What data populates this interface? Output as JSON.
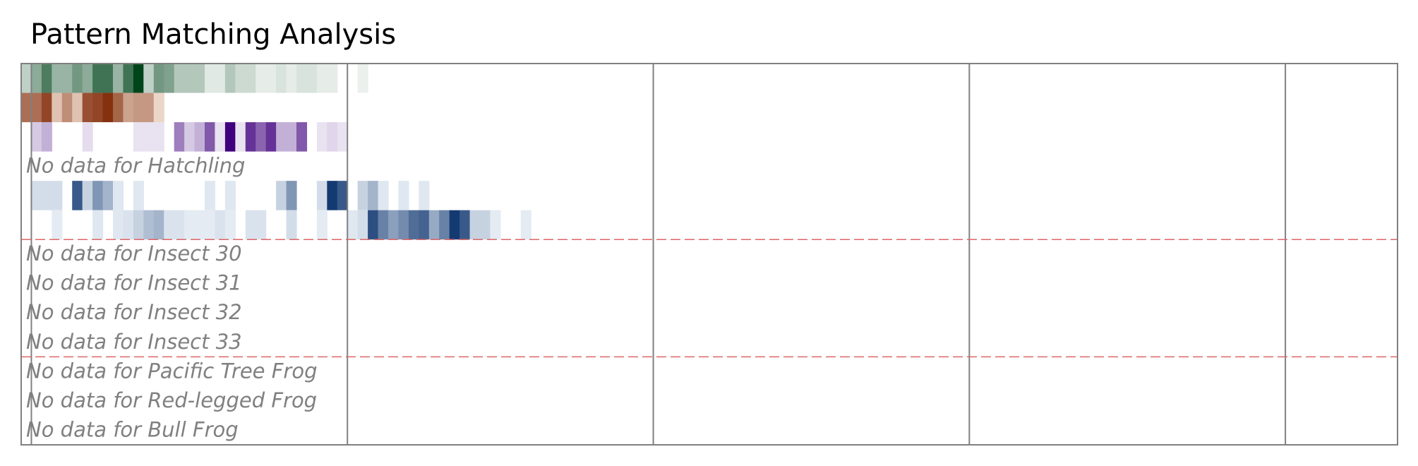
{
  "chart_data": {
    "type": "heatmap",
    "title": "Pattern Matching Analysis",
    "xlabel": "",
    "ylabel": "",
    "grid": true,
    "columns": 135,
    "rows": [
      {
        "name": "",
        "colormap": "greens",
        "values": [
          0.25,
          0.45,
          0.7,
          0.4,
          0.4,
          0.55,
          0.45,
          0.75,
          0.75,
          0.4,
          0.75,
          1,
          0.25,
          0.55,
          0.5,
          0.3,
          0.3,
          0.3,
          0.12,
          0.12,
          0.3,
          0.2,
          0.2,
          0.1,
          0.1,
          0.15,
          0.1,
          0.15,
          0.15,
          0.1,
          0.1,
          0,
          0,
          0.08,
          0,
          0,
          0,
          0,
          0,
          0,
          0,
          0,
          0,
          0,
          0,
          0,
          0,
          0,
          0,
          0,
          0,
          0,
          0,
          0,
          0,
          0,
          0,
          0,
          0,
          0,
          0,
          0,
          0,
          0,
          0,
          0,
          0,
          0,
          0,
          0,
          0,
          0,
          0,
          0,
          0,
          0,
          0,
          0,
          0,
          0,
          0,
          0,
          0,
          0,
          0,
          0,
          0,
          0,
          0,
          0,
          0,
          0,
          0,
          0,
          0,
          0,
          0,
          0,
          0,
          0,
          0,
          0,
          0,
          0,
          0,
          0,
          0,
          0,
          0,
          0,
          0,
          0,
          0,
          0,
          0,
          0,
          0,
          0,
          0,
          0,
          0,
          0,
          0,
          0,
          0,
          0,
          0,
          0,
          0,
          0,
          0,
          0,
          0,
          0,
          0
        ]
      },
      {
        "name": "",
        "colormap": "oranges",
        "values": [
          0.65,
          0.65,
          0.85,
          0.25,
          0.5,
          0.25,
          0.8,
          0.85,
          0.95,
          0.7,
          0.4,
          0.45,
          0.45,
          0.15,
          0,
          0,
          0,
          0,
          0,
          0,
          0,
          0,
          0,
          0,
          0,
          0,
          0,
          0,
          0,
          0,
          0,
          0,
          0,
          0,
          0,
          0,
          0,
          0,
          0,
          0,
          0,
          0,
          0,
          0,
          0,
          0,
          0,
          0,
          0,
          0,
          0,
          0,
          0,
          0,
          0,
          0,
          0,
          0,
          0,
          0,
          0,
          0,
          0,
          0,
          0,
          0,
          0,
          0,
          0,
          0,
          0,
          0,
          0,
          0,
          0,
          0,
          0,
          0,
          0,
          0,
          0,
          0,
          0,
          0,
          0,
          0,
          0,
          0,
          0,
          0,
          0,
          0,
          0,
          0,
          0,
          0,
          0,
          0,
          0,
          0,
          0,
          0,
          0,
          0,
          0,
          0,
          0,
          0,
          0,
          0,
          0,
          0,
          0,
          0,
          0,
          0,
          0,
          0,
          0,
          0,
          0,
          0,
          0,
          0,
          0,
          0,
          0,
          0,
          0,
          0,
          0,
          0,
          0,
          0,
          0
        ]
      },
      {
        "name": "",
        "colormap": "purples",
        "values": [
          0,
          0.2,
          0.3,
          0,
          0,
          0,
          0.12,
          0,
          0,
          0,
          0,
          0.1,
          0.1,
          0.1,
          0,
          0.5,
          0.2,
          0.3,
          0.65,
          0.1,
          1,
          0.1,
          0.8,
          0.6,
          0.8,
          0.3,
          0.3,
          0.65,
          0,
          0.1,
          0.15,
          0.1,
          0,
          0,
          0,
          0,
          0,
          0,
          0,
          0,
          0,
          0,
          0,
          0,
          0,
          0,
          0,
          0,
          0,
          0,
          0,
          0,
          0,
          0,
          0,
          0,
          0,
          0,
          0,
          0,
          0,
          0,
          0,
          0,
          0,
          0,
          0,
          0,
          0,
          0,
          0,
          0,
          0,
          0,
          0,
          0,
          0,
          0,
          0,
          0,
          0,
          0,
          0,
          0,
          0,
          0,
          0,
          0,
          0,
          0,
          0,
          0,
          0,
          0,
          0,
          0,
          0,
          0,
          0,
          0,
          0,
          0,
          0,
          0,
          0,
          0,
          0,
          0,
          0,
          0,
          0,
          0,
          0,
          0,
          0,
          0,
          0,
          0,
          0,
          0,
          0,
          0,
          0,
          0,
          0,
          0,
          0,
          0,
          0,
          0,
          0,
          0,
          0,
          0,
          0
        ]
      },
      {
        "name": "Hatchling",
        "colormap": "none",
        "values": []
      },
      {
        "name": "",
        "colormap": "blues",
        "values": [
          0,
          0.15,
          0.15,
          0.15,
          0,
          0.8,
          0.2,
          0.5,
          0.35,
          0.1,
          0,
          0.1,
          0,
          0,
          0,
          0,
          0,
          0,
          0.1,
          0,
          0.1,
          0,
          0,
          0,
          0,
          0.2,
          0.5,
          0,
          0,
          0.15,
          0.95,
          0.8,
          0,
          0.2,
          0.35,
          0.1,
          0,
          0.1,
          0,
          0.1,
          0,
          0,
          0,
          0,
          0,
          0,
          0,
          0,
          0,
          0,
          0,
          0,
          0,
          0,
          0,
          0,
          0,
          0,
          0,
          0,
          0,
          0,
          0,
          0,
          0,
          0,
          0,
          0,
          0,
          0,
          0,
          0,
          0,
          0,
          0,
          0,
          0,
          0,
          0,
          0,
          0,
          0,
          0,
          0,
          0,
          0,
          0,
          0,
          0,
          0,
          0,
          0,
          0,
          0,
          0,
          0,
          0,
          0,
          0,
          0,
          0,
          0,
          0,
          0,
          0,
          0,
          0,
          0,
          0,
          0,
          0,
          0,
          0,
          0,
          0,
          0,
          0,
          0,
          0,
          0,
          0,
          0,
          0,
          0,
          0,
          0,
          0,
          0,
          0,
          0,
          0,
          0,
          0,
          0,
          0
        ]
      },
      {
        "name": "",
        "colormap": "blues",
        "values": [
          0,
          0,
          0,
          0.08,
          0,
          0,
          0,
          0.1,
          0,
          0.1,
          0.12,
          0.2,
          0.3,
          0.35,
          0.12,
          0.12,
          0.08,
          0.08,
          0.08,
          0.12,
          0.08,
          0,
          0.12,
          0.12,
          0,
          0,
          0.15,
          0,
          0,
          0.08,
          0,
          0,
          0.1,
          0.15,
          0.85,
          0.6,
          0.45,
          0.55,
          0.7,
          0.75,
          0.4,
          0.6,
          0.95,
          0.8,
          0.2,
          0.2,
          0.08,
          0,
          0,
          0.08,
          0,
          0,
          0,
          0,
          0,
          0,
          0,
          0,
          0,
          0,
          0,
          0,
          0,
          0,
          0,
          0,
          0,
          0,
          0,
          0,
          0,
          0,
          0,
          0,
          0,
          0,
          0,
          0,
          0,
          0,
          0,
          0,
          0,
          0,
          0,
          0,
          0,
          0,
          0,
          0,
          0,
          0,
          0,
          0,
          0,
          0,
          0,
          0,
          0,
          0,
          0,
          0,
          0,
          0,
          0,
          0,
          0,
          0,
          0,
          0,
          0,
          0,
          0,
          0,
          0,
          0,
          0,
          0,
          0,
          0,
          0,
          0,
          0,
          0,
          0,
          0,
          0,
          0,
          0,
          0,
          0,
          0,
          0,
          0,
          0
        ]
      },
      {
        "name": "Insect 30",
        "colormap": "none",
        "values": []
      },
      {
        "name": "Insect 31",
        "colormap": "none",
        "values": []
      },
      {
        "name": "Insect 32",
        "colormap": "none",
        "values": []
      },
      {
        "name": "Insect 33",
        "colormap": "none",
        "values": []
      },
      {
        "name": "Pacific Tree Frog",
        "colormap": "none",
        "values": []
      },
      {
        "name": "Red-legged Frog",
        "colormap": "none",
        "values": []
      },
      {
        "name": "Bull Frog",
        "colormap": "none",
        "values": []
      }
    ],
    "no_data_label": "No data for",
    "vertical_lines_at_column": [
      1,
      32,
      62,
      93,
      124
    ],
    "group_separators_after_row": [
      6,
      10
    ],
    "colors": {
      "frame": "#808080",
      "separator": "#e06666",
      "no_data_text": "#808080",
      "greens": [
        "#ffffff",
        "#00441b"
      ],
      "oranges": [
        "#fff5eb",
        "#7f2704"
      ],
      "purples": [
        "#fcfbfd",
        "#3f007d"
      ],
      "blues": [
        "#f7fbff",
        "#08306b"
      ]
    }
  }
}
